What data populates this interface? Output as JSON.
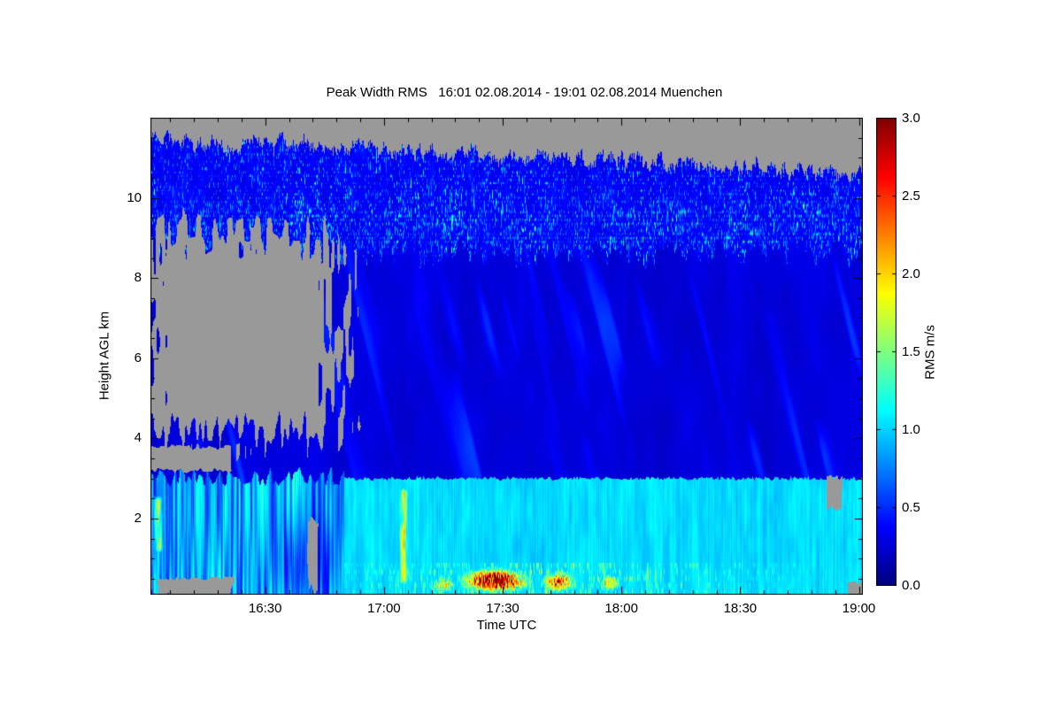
{
  "chart_data": {
    "type": "heatmap",
    "title": "Peak Width RMS   16:01 02.08.2014 - 19:01 02.08.2014 Muenchen",
    "xlabel": "Time UTC",
    "ylabel": "Height AGL km",
    "x_axis": {
      "start": "16:01",
      "end": "19:01",
      "range_minutes_after_1600": [
        1,
        181
      ],
      "major_ticks": [
        {
          "minutes": 30,
          "label": "16:30"
        },
        {
          "minutes": 60,
          "label": "17:00"
        },
        {
          "minutes": 90,
          "label": "17:30"
        },
        {
          "minutes": 120,
          "label": "18:00"
        },
        {
          "minutes": 150,
          "label": "18:30"
        },
        {
          "minutes": 180,
          "label": "19:00"
        }
      ],
      "minor_tick_every_minutes": 6
    },
    "y_axis": {
      "range_km": [
        0.1,
        12.0
      ],
      "major_ticks": [
        {
          "km": 2,
          "label": "2"
        },
        {
          "km": 4,
          "label": "4"
        },
        {
          "km": 6,
          "label": "6"
        },
        {
          "km": 8,
          "label": "8"
        },
        {
          "km": 10,
          "label": "10"
        }
      ],
      "minor_tick_every_km": 0.5
    },
    "colorbar": {
      "label": "RMS m/s",
      "range": [
        0.0,
        3.0
      ],
      "ticks": [
        "0.0",
        "0.5",
        "1.0",
        "1.5",
        "2.0",
        "2.5",
        "3.0"
      ],
      "tick_values": [
        0.0,
        0.5,
        1.0,
        1.5,
        2.0,
        2.5,
        3.0
      ],
      "colormap": "jet-rainbow",
      "no_data_color": "#999999"
    },
    "features": {
      "cloud_top_km": [
        [
          1,
          11.45
        ],
        [
          20,
          11.3
        ],
        [
          40,
          11.35
        ],
        [
          60,
          11.2
        ],
        [
          80,
          11.1
        ],
        [
          100,
          11.0
        ],
        [
          120,
          10.9
        ],
        [
          140,
          10.85
        ],
        [
          160,
          10.7
        ],
        [
          181,
          10.55
        ]
      ],
      "cloud_base_km": 8.9,
      "cloud_layer": {
        "mean_rms": 0.35,
        "speckle_rms_max": 1.4,
        "desc": "cirrus band with cyan speckles"
      },
      "mid_level": {
        "h_km": [
          3.0,
          9.0
        ],
        "mean_rms": 0.25,
        "desc": "uniform dark blue clear air"
      },
      "boundary_layer": {
        "t_minutes": [
          50,
          181
        ],
        "top_km": 3.0,
        "mean_rms": 1.03,
        "desc": "solid cyan mixed layer with sharp top"
      },
      "early_boundary_layer": {
        "t_minutes": [
          1,
          50
        ],
        "top_km": 3.0,
        "rms_range": [
          0.3,
          1.45
        ],
        "desc": "vertical blue/cyan streaks"
      },
      "no_data_regions": [
        {
          "t": [
            1,
            48
          ],
          "h": [
            4.2,
            9.1
          ],
          "desc": "mid-level data gap before 16:50"
        },
        {
          "t": [
            33.5,
            38.5
          ],
          "h": [
            8.35,
            8.85
          ],
          "desc": "small gap island"
        },
        {
          "t": [
            38.5,
            42.5
          ],
          "h": [
            7.5,
            7.95
          ],
          "desc": "small gap arm"
        },
        {
          "t": [
            1,
            21
          ],
          "h": [
            3.2,
            3.8
          ],
          "desc": "low sliver gap at left"
        },
        {
          "t": [
            2,
            20
          ],
          "h": [
            0.1,
            0.5
          ],
          "desc": "surface strip gap bottom-left"
        },
        {
          "t": [
            40.8,
            43.4
          ],
          "h": [
            0.1,
            1.9
          ],
          "desc": "narrow notch near 16:43"
        },
        {
          "t": [
            172,
            175.5
          ],
          "h": [
            2.25,
            3.0
          ],
          "desc": "patch near 18:55 at BL top"
        },
        {
          "t": [
            177.5,
            181
          ],
          "h": [
            0.1,
            0.4
          ],
          "desc": "bottom-right corner gap"
        }
      ],
      "plumes": [
        {
          "t": 65,
          "t_sigma": 0.9,
          "h": [
            0.2,
            2.9
          ],
          "rms": 1.75,
          "desc": "yellow-green vertical plume ~17:05"
        },
        {
          "t": 3,
          "t_sigma": 1.0,
          "h": [
            1.0,
            2.7
          ],
          "rms": 1.55,
          "desc": "green streak at left edge"
        }
      ],
      "hotspots": [
        {
          "t": 88,
          "h": 0.45,
          "t_sigma": 6.5,
          "h_sigma": 0.22,
          "rms_peak": 3.0,
          "desc": "main surface hotspot ~17:28"
        },
        {
          "t": 104,
          "h": 0.42,
          "t_sigma": 3.5,
          "h_sigma": 0.2,
          "rms_peak": 2.3,
          "desc": "hotspot ~17:44"
        },
        {
          "t": 117,
          "h": 0.4,
          "t_sigma": 2.5,
          "h_sigma": 0.18,
          "rms_peak": 1.9,
          "desc": "hotspot ~17:57"
        },
        {
          "t": 75,
          "h": 0.35,
          "t_sigma": 3.0,
          "h_sigma": 0.18,
          "rms_peak": 1.7,
          "desc": "hotspot ~17:15"
        }
      ],
      "bottom_speckle": {
        "t_center": 100,
        "t_sigma": 35,
        "h_below_km": 0.9,
        "desc": "green speckle near surface mid-period"
      }
    }
  }
}
